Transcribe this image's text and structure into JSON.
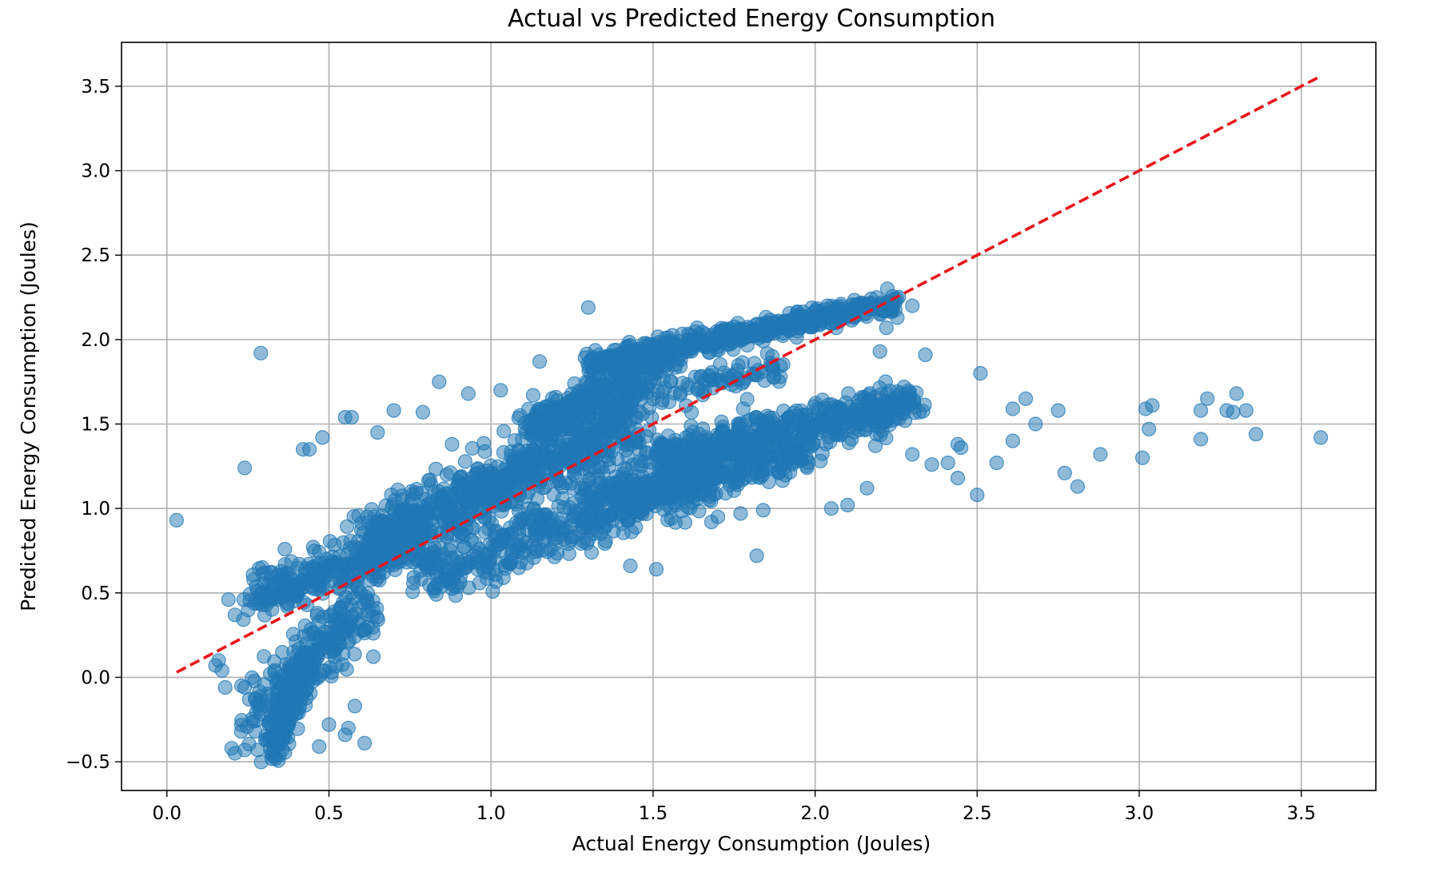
{
  "chart_data": {
    "type": "scatter",
    "title": "Actual vs Predicted Energy Consumption",
    "xlabel": "Actual Energy Consumption (Joules)",
    "ylabel": "Predicted Energy Consumption (Joules)",
    "xlim": [
      -0.14,
      3.73
    ],
    "ylim": [
      -0.67,
      3.76
    ],
    "xticks": [
      0.0,
      0.5,
      1.0,
      1.5,
      2.0,
      2.5,
      3.0,
      3.5
    ],
    "xtick_labels": [
      "0.0",
      "0.5",
      "1.0",
      "1.5",
      "2.0",
      "2.5",
      "3.0",
      "3.5"
    ],
    "yticks": [
      -0.5,
      0.0,
      0.5,
      1.0,
      1.5,
      2.0,
      2.5,
      3.0,
      3.5
    ],
    "ytick_labels": [
      "−0.5",
      "0.0",
      "0.5",
      "1.0",
      "1.5",
      "2.0",
      "2.5",
      "3.0",
      "3.5"
    ],
    "grid": true,
    "point_color": "#1f77b4",
    "point_alpha": 0.5,
    "reference_line": {
      "x": [
        0.03,
        3.55
      ],
      "y": [
        0.03,
        3.55
      ],
      "color": "#e8141b",
      "style": "dashed"
    },
    "clusters": [
      {
        "x": [
          0.28,
          0.62
        ],
        "y": [
          -0.25,
          0.45
        ],
        "spread": 0.11,
        "n": 260
      },
      {
        "x": [
          0.33,
          0.42
        ],
        "y": [
          -0.45,
          0.1
        ],
        "spread": 0.05,
        "n": 140
      },
      {
        "x": [
          0.27,
          0.8
        ],
        "y": [
          0.48,
          0.8
        ],
        "spread": 0.07,
        "n": 300
      },
      {
        "x": [
          0.6,
          1.45
        ],
        "y": [
          0.8,
          1.5
        ],
        "spread": 0.1,
        "n": 700
      },
      {
        "x": [
          0.8,
          1.7
        ],
        "y": [
          0.6,
          1.25
        ],
        "spread": 0.09,
        "n": 500
      },
      {
        "x": [
          1.3,
          2.25
        ],
        "y": [
          1.85,
          2.22
        ],
        "spread": 0.035,
        "n": 500
      },
      {
        "x": [
          1.1,
          1.55
        ],
        "y": [
          1.45,
          1.9
        ],
        "spread": 0.06,
        "n": 250
      },
      {
        "x": [
          1.5,
          2.3
        ],
        "y": [
          1.3,
          1.62
        ],
        "spread": 0.06,
        "n": 500
      },
      {
        "x": [
          1.4,
          2.0
        ],
        "y": [
          1.05,
          1.35
        ],
        "spread": 0.06,
        "n": 250
      },
      {
        "x": [
          1.2,
          1.9
        ],
        "y": [
          1.55,
          1.85
        ],
        "spread": 0.05,
        "n": 150
      }
    ],
    "points": [
      {
        "x": 0.03,
        "y": 0.93
      },
      {
        "x": 0.29,
        "y": 1.92
      },
      {
        "x": 0.24,
        "y": 1.24
      },
      {
        "x": 0.15,
        "y": 0.07
      },
      {
        "x": 0.16,
        "y": 0.1
      },
      {
        "x": 0.17,
        "y": 0.04
      },
      {
        "x": 0.18,
        "y": -0.06
      },
      {
        "x": 0.19,
        "y": 0.46
      },
      {
        "x": 0.21,
        "y": 0.37
      },
      {
        "x": 0.23,
        "y": -0.05
      },
      {
        "x": 0.24,
        "y": -0.06
      },
      {
        "x": 0.2,
        "y": -0.42
      },
      {
        "x": 0.21,
        "y": -0.45
      },
      {
        "x": 0.24,
        "y": -0.43
      },
      {
        "x": 0.28,
        "y": -0.43
      },
      {
        "x": 0.47,
        "y": -0.41
      },
      {
        "x": 0.5,
        "y": -0.28
      },
      {
        "x": 0.55,
        "y": -0.34
      },
      {
        "x": 0.56,
        "y": -0.3
      },
      {
        "x": 0.61,
        "y": -0.39
      },
      {
        "x": 0.58,
        "y": -0.17
      },
      {
        "x": 0.42,
        "y": 1.35
      },
      {
        "x": 0.44,
        "y": 1.35
      },
      {
        "x": 0.48,
        "y": 1.42
      },
      {
        "x": 0.55,
        "y": 1.54
      },
      {
        "x": 0.57,
        "y": 1.54
      },
      {
        "x": 0.65,
        "y": 1.45
      },
      {
        "x": 0.7,
        "y": 1.58
      },
      {
        "x": 0.79,
        "y": 1.57
      },
      {
        "x": 0.84,
        "y": 1.75
      },
      {
        "x": 0.88,
        "y": 1.38
      },
      {
        "x": 0.93,
        "y": 1.68
      },
      {
        "x": 1.03,
        "y": 1.7
      },
      {
        "x": 1.13,
        "y": 1.67
      },
      {
        "x": 1.15,
        "y": 1.87
      },
      {
        "x": 1.3,
        "y": 2.19
      },
      {
        "x": 1.31,
        "y": 0.74
      },
      {
        "x": 1.43,
        "y": 0.66
      },
      {
        "x": 1.51,
        "y": 0.64
      },
      {
        "x": 1.68,
        "y": 0.92
      },
      {
        "x": 1.7,
        "y": 0.95
      },
      {
        "x": 1.77,
        "y": 0.97
      },
      {
        "x": 1.82,
        "y": 0.72
      },
      {
        "x": 1.84,
        "y": 0.99
      },
      {
        "x": 2.05,
        "y": 1.0
      },
      {
        "x": 2.1,
        "y": 1.02
      },
      {
        "x": 2.16,
        "y": 1.12
      },
      {
        "x": 2.2,
        "y": 1.93
      },
      {
        "x": 2.24,
        "y": 2.19
      },
      {
        "x": 2.3,
        "y": 2.2
      },
      {
        "x": 2.34,
        "y": 1.91
      },
      {
        "x": 2.22,
        "y": 2.07
      },
      {
        "x": 2.3,
        "y": 1.32
      },
      {
        "x": 2.36,
        "y": 1.26
      },
      {
        "x": 2.41,
        "y": 1.27
      },
      {
        "x": 2.44,
        "y": 1.18
      },
      {
        "x": 2.44,
        "y": 1.38
      },
      {
        "x": 2.45,
        "y": 1.36
      },
      {
        "x": 2.5,
        "y": 1.08
      },
      {
        "x": 2.51,
        "y": 1.8
      },
      {
        "x": 2.56,
        "y": 1.27
      },
      {
        "x": 2.61,
        "y": 1.4
      },
      {
        "x": 2.61,
        "y": 1.59
      },
      {
        "x": 2.65,
        "y": 1.65
      },
      {
        "x": 2.68,
        "y": 1.5
      },
      {
        "x": 2.75,
        "y": 1.58
      },
      {
        "x": 2.77,
        "y": 1.21
      },
      {
        "x": 2.81,
        "y": 1.13
      },
      {
        "x": 2.88,
        "y": 1.32
      },
      {
        "x": 3.01,
        "y": 1.3
      },
      {
        "x": 3.02,
        "y": 1.59
      },
      {
        "x": 3.03,
        "y": 1.47
      },
      {
        "x": 3.04,
        "y": 1.61
      },
      {
        "x": 3.19,
        "y": 1.58
      },
      {
        "x": 3.19,
        "y": 1.41
      },
      {
        "x": 3.21,
        "y": 1.65
      },
      {
        "x": 3.27,
        "y": 1.58
      },
      {
        "x": 3.29,
        "y": 1.57
      },
      {
        "x": 3.3,
        "y": 1.68
      },
      {
        "x": 3.33,
        "y": 1.58
      },
      {
        "x": 3.36,
        "y": 1.44
      },
      {
        "x": 3.56,
        "y": 1.42
      }
    ]
  }
}
